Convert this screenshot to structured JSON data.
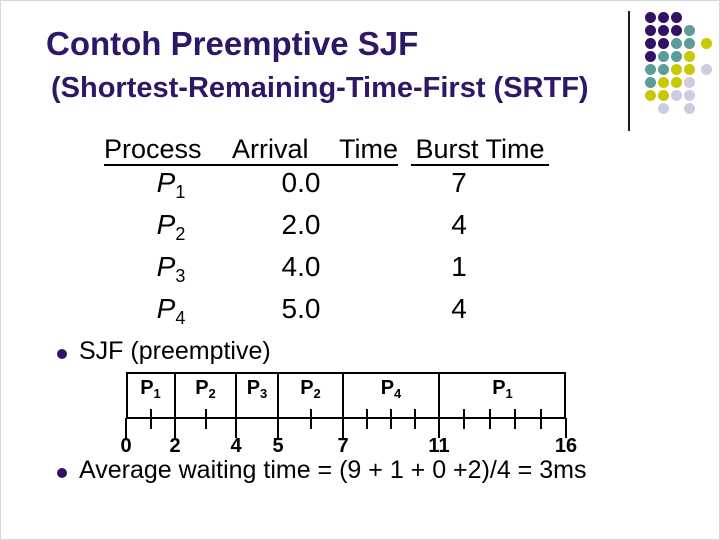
{
  "slide": {
    "title": "Contoh Preemptive SJF",
    "subtitle": "(Shortest-Remaining-Time-First (SRTF)"
  },
  "table": {
    "header": {
      "process": "Process",
      "arrival": "Arrival",
      "time": "Time",
      "burst": "Burst Time"
    },
    "rows": [
      {
        "name": "P",
        "sub": "1",
        "arrival": "0.0",
        "burst": "7"
      },
      {
        "name": "P",
        "sub": "2",
        "arrival": "2.0",
        "burst": "4"
      },
      {
        "name": "P",
        "sub": "3",
        "arrival": "4.0",
        "burst": "1"
      },
      {
        "name": "P",
        "sub": "4",
        "arrival": "5.0",
        "burst": "4"
      }
    ]
  },
  "bullets": {
    "sjf": "SJF (preemptive)",
    "average": "Average waiting time = (9 + 1 + 0 +2)/4 = 3ms"
  },
  "gantt": {
    "type": "gantt",
    "segments": [
      {
        "label": "P",
        "sub": "1",
        "start": 0,
        "end": 2
      },
      {
        "label": "P",
        "sub": "2",
        "start": 2,
        "end": 4
      },
      {
        "label": "P",
        "sub": "3",
        "start": 4,
        "end": 5
      },
      {
        "label": "P",
        "sub": "2",
        "start": 5,
        "end": 7
      },
      {
        "label": "P",
        "sub": "4",
        "start": 7,
        "end": 11
      },
      {
        "label": "P",
        "sub": "1",
        "start": 11,
        "end": 16
      }
    ],
    "axis_ticks": [
      "0",
      "2",
      "4",
      "5",
      "7",
      "11",
      "16"
    ],
    "minor_ticks": [
      1,
      3,
      6,
      8,
      9,
      10,
      12,
      13,
      14,
      15
    ]
  },
  "decor": {
    "dot_rows": [
      "PPP",
      "PPPT",
      "PPTTY",
      "PTTY",
      "TTYYG",
      "TYYG",
      "YYGG",
      ".G.G"
    ],
    "dot_colors": {
      "P": "#331266",
      "T": "#5E9B9B",
      "Y": "#C9C900",
      "G": "#CDCDE1"
    }
  },
  "colors": {
    "title": "#2E1766",
    "text": "#000000",
    "bullet": "#331266",
    "background": "#FFFFFF"
  }
}
